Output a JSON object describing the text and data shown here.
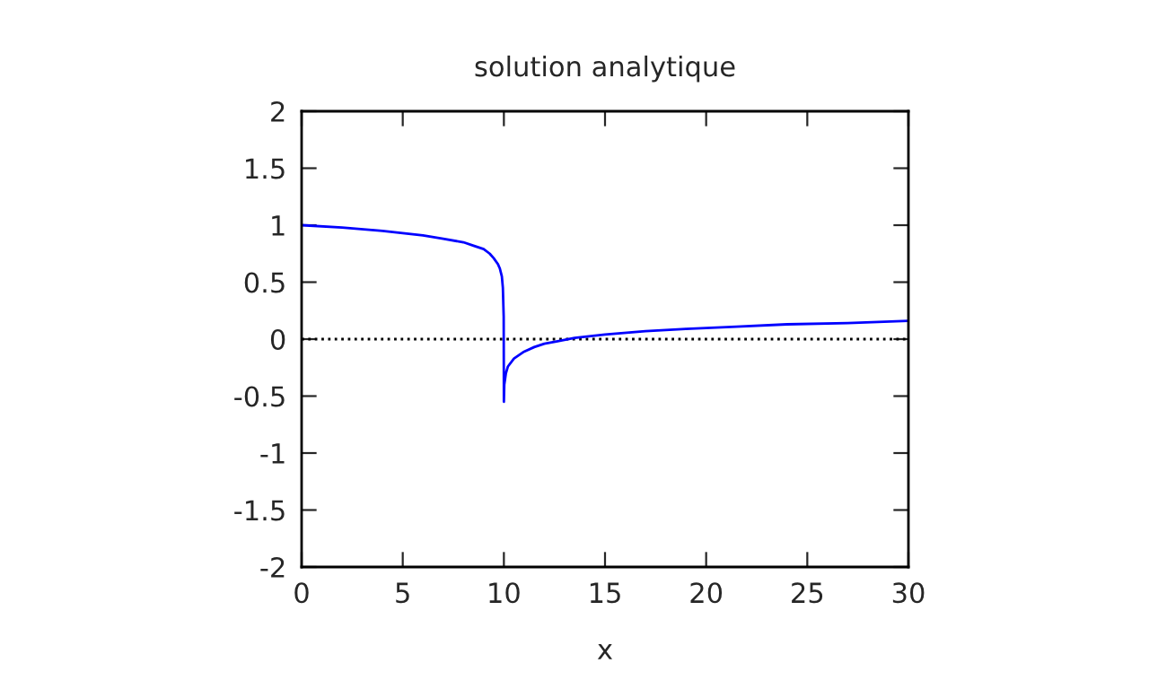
{
  "chart_data": {
    "type": "line",
    "title": "solution analytique",
    "xlabel": "x",
    "series": [
      {
        "color": "#0000ff",
        "x": [
          0,
          2,
          4,
          5,
          6,
          7,
          8,
          8.5,
          9,
          9.3,
          9.5,
          9.7,
          9.8,
          9.9,
          9.95,
          9.99,
          10,
          10.02,
          10.1,
          10.2,
          10.5,
          11,
          11.5,
          12,
          12.6,
          13.5,
          15,
          17,
          19,
          21.5,
          24,
          27,
          30
        ],
        "values": [
          1,
          0.98,
          0.95,
          0.93,
          0.91,
          0.88,
          0.85,
          0.82,
          0.79,
          0.75,
          0.71,
          0.66,
          0.62,
          0.55,
          0.45,
          0.2,
          -0.55,
          -0.4,
          -0.3,
          -0.24,
          -0.17,
          -0.11,
          -0.07,
          -0.04,
          -0.02,
          0.01,
          0.04,
          0.07,
          0.09,
          0.11,
          0.13,
          0.14,
          0.16
        ]
      }
    ],
    "xlim": [
      0,
      30
    ],
    "xticks": [
      0,
      5,
      10,
      15,
      20,
      25,
      30
    ],
    "ylim": [
      -2,
      2
    ],
    "yticks": [
      -2,
      -1.5,
      -1,
      -0.5,
      0,
      0.5,
      1,
      1.5,
      2
    ],
    "ref_lines": [
      {
        "axis": "y",
        "value": 0,
        "color": "#000000",
        "line_style": "dotted"
      }
    ],
    "grid": false,
    "legend": false
  }
}
